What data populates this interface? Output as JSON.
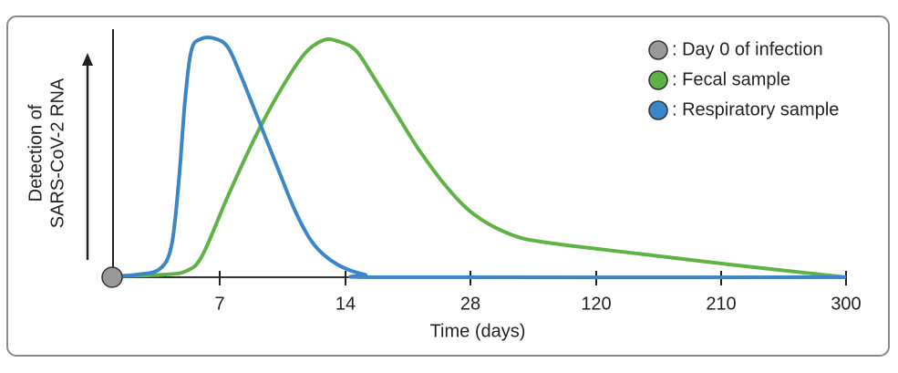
{
  "chart_data": {
    "type": "line",
    "ylabel": [
      "Detection of",
      "SARS-CoV-2 RNA"
    ],
    "xlabel": "Time (days)",
    "xlim": [
      0,
      805
    ],
    "ylim": [
      0,
      100
    ],
    "xticks": [
      {
        "value": 118,
        "label": "7"
      },
      {
        "value": 256,
        "label": "14"
      },
      {
        "value": 393,
        "label": "28"
      },
      {
        "value": 531,
        "label": "120"
      },
      {
        "value": 668,
        "label": "210"
      },
      {
        "value": 805,
        "label": "300"
      }
    ],
    "series": [
      {
        "name": ": Day 0 of infection",
        "color": "#999999",
        "marker": true,
        "x": [
          0
        ],
        "values": [
          0
        ]
      },
      {
        "name": ": Fecal sample",
        "color": "#5fb346",
        "x": [
          0,
          57,
          82,
          99,
          127,
          157,
          187,
          212,
          232,
          247,
          267,
          287,
          312,
          337,
          367,
          397,
          437,
          477,
          577,
          677,
          805
        ],
        "values": [
          0.4,
          1.1,
          2.7,
          9.1,
          33.7,
          58.3,
          79.2,
          93.2,
          98.5,
          98.1,
          94.3,
          83,
          67.8,
          52.7,
          37.5,
          26.1,
          17.8,
          14.4,
          9.8,
          5.3,
          0
        ]
      },
      {
        "name": ": Respiratory sample",
        "color": "#3a86c8",
        "x": [
          0,
          27,
          52,
          65,
          73,
          80,
          87,
          97,
          112,
          127,
          142,
          162,
          182,
          202,
          222,
          247,
          277,
          307,
          805
        ],
        "values": [
          0.4,
          1.1,
          3.4,
          12.9,
          39.4,
          73.5,
          94.3,
          98.9,
          99.2,
          95.5,
          83,
          64,
          45,
          26.5,
          13.3,
          5.3,
          1.1,
          0,
          0
        ]
      }
    ]
  }
}
